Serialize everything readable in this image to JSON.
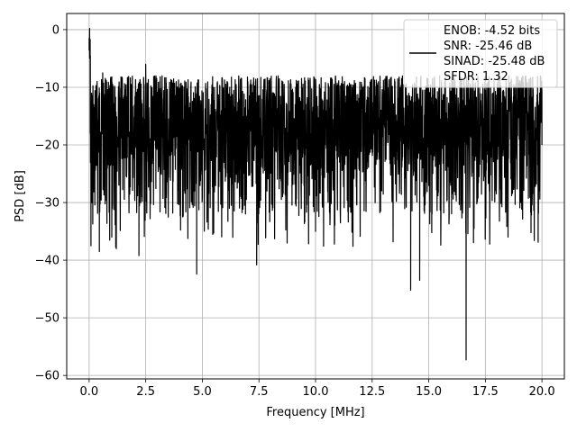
{
  "chart_data": {
    "type": "line",
    "title": "",
    "xlabel": "Frequency [MHz]",
    "ylabel": "PSD [dB]",
    "xlim": [
      -0.99,
      20.99
    ],
    "ylim": [
      -60.6,
      2.8
    ],
    "xticks": [
      0,
      2.5,
      5,
      7.5,
      10,
      12.5,
      15,
      17.5,
      20
    ],
    "xtick_labels": [
      "0.0",
      "2.5",
      "5.0",
      "7.5",
      "10.0",
      "12.5",
      "15.0",
      "17.5",
      "20.0"
    ],
    "yticks": [
      0,
      -10,
      -20,
      -30,
      -40,
      -50,
      -60
    ],
    "ytick_labels": [
      "0",
      "−10",
      "−20",
      "−30",
      "−40",
      "−50",
      "−60"
    ],
    "grid": true,
    "legend_placement": "top-right",
    "legend_lines": [
      "ENOB: -4.52 bits",
      "SNR: -25.46 dB",
      "SINAD: -25.48 dB",
      "SFDR: 1.32"
    ],
    "series_color": "#000000",
    "trace_description": "Noisy PSD, roughly between -8 and -28 dB across 0–20 MHz, peak near 0 dB at DC.",
    "series": [
      {
        "x": [
          0.0,
          0.02,
          0.05,
          0.08,
          0.12,
          0.2,
          0.45,
          0.6,
          1.0,
          1.2,
          2.2,
          2.5,
          4.75,
          5.5,
          7.4,
          10.0,
          14.2,
          14.6,
          16.65,
          17.0,
          18.5,
          20.0
        ],
        "y": [
          -1.5,
          0.2,
          -18.0,
          -37.5,
          -21.0,
          -13.0,
          -38.5,
          -7.5,
          -36.0,
          -38.0,
          -39.2,
          -6.0,
          -42.4,
          -35.3,
          -40.8,
          -35.0,
          -45.2,
          -43.5,
          -57.3,
          -34.5,
          -36.0,
          -20.0
        ]
      }
    ]
  }
}
